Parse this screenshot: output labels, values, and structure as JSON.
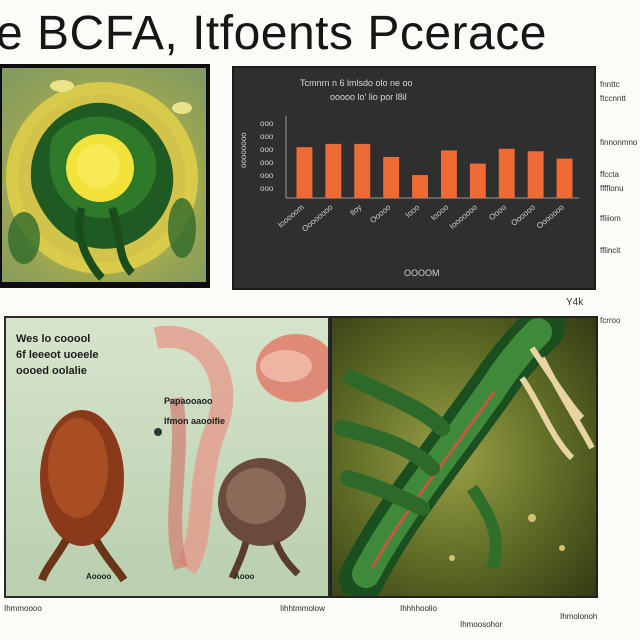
{
  "header": {
    "title": "e BCFA, Itfoents Pcerace"
  },
  "chart_panel": {
    "caption_line1": "Tcmnrn n  6 lmlsdo  olo  ne  oo",
    "caption_line2": "ooooo  lo'  lio  por  l8il",
    "y_axis_label": "oooooooo",
    "y_ticks": [
      "ooo",
      "ooo",
      "ooo",
      "ooo",
      "ooo",
      "ooo"
    ],
    "x_title": "OOOOM",
    "bar_color": "#ef6b35"
  },
  "chart_data": {
    "type": "bar",
    "title": "",
    "xlabel": "",
    "ylabel": "",
    "categories": [
      "Iooooom",
      "Oooooooo",
      "Iloy",
      "Ooooo",
      "Iooo",
      "Ioooo",
      "Iooooooo",
      "Oooo",
      "Oooooo",
      "Ooooooo"
    ],
    "values": [
      62,
      66,
      66,
      50,
      28,
      58,
      42,
      60,
      57,
      48
    ],
    "ylim": [
      0,
      100
    ]
  },
  "right_notes": [
    "fnnttc",
    "ftccnntt",
    "finnonmno",
    "ffccta",
    "fffflonu",
    "ffiiiom",
    "fflincit",
    "fcrroo"
  ],
  "lower_left": {
    "heading": [
      "Wes lo cooool",
      "6f leeeot uoeele",
      "oooed oolalie"
    ],
    "anno_1": "Papaooaoo",
    "anno_2": "Ifmon aaooifie",
    "label_left": "Aoooo",
    "label_right": "Aooo"
  },
  "footer": [
    "Ihmmoooo",
    "Iihhtmmolow",
    "Ihhhhoolio",
    "Ihmoosohor",
    "Ihmolonoh"
  ],
  "side_mark": "Y4k"
}
